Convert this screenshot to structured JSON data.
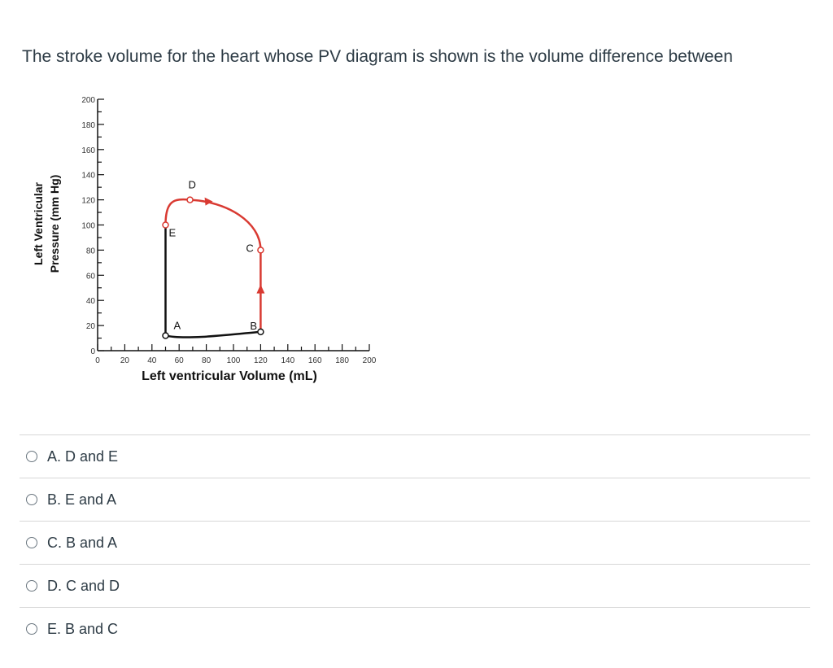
{
  "question": {
    "text": "The stroke volume for the heart whose PV diagram is shown is the volume difference between"
  },
  "chart_data": {
    "type": "line",
    "xlabel": "Left ventricular Volume (mL)",
    "ylabel_line1": "Left Ventricular",
    "ylabel_line2": "Pressure  (mm Hg)",
    "xlim": [
      0,
      200
    ],
    "ylim": [
      0,
      200
    ],
    "x_ticks": [
      0,
      20,
      40,
      60,
      80,
      100,
      120,
      140,
      160,
      180,
      200
    ],
    "y_ticks": [
      0,
      20,
      40,
      60,
      80,
      100,
      120,
      140,
      160,
      180,
      200
    ],
    "points": [
      {
        "label": "A",
        "x": 50,
        "y": 12
      },
      {
        "label": "B",
        "x": 120,
        "y": 15
      },
      {
        "label": "C",
        "x": 120,
        "y": 80
      },
      {
        "label": "D",
        "x": 68,
        "y": 120
      },
      {
        "label": "E",
        "x": 50,
        "y": 100
      }
    ],
    "series": [
      {
        "color": "#d93a32",
        "segments": [
          "E-D",
          "D-C",
          "C-B"
        ]
      },
      {
        "color": "#111111",
        "segments": [
          "B-A",
          "A-E"
        ]
      }
    ]
  },
  "options": [
    {
      "label": "A. D and E"
    },
    {
      "label": "B. E and A"
    },
    {
      "label": "C. B and A"
    },
    {
      "label": "D. C and D"
    },
    {
      "label": "E. B and C"
    }
  ]
}
